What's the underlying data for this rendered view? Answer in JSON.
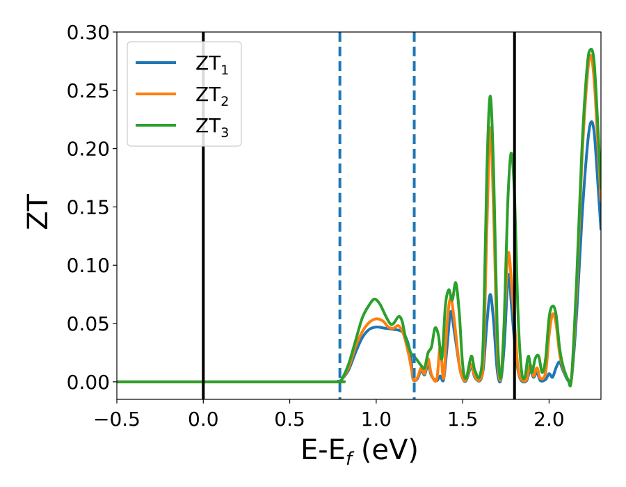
{
  "chart_data": {
    "type": "line",
    "xlabel": "E-E",
    "xlabel_sub": "f",
    "xlabel_unit": " (eV)",
    "ylabel": "ZT",
    "xlim": [
      -0.5,
      2.3
    ],
    "ylim": [
      -0.015,
      0.3
    ],
    "x_ticks": [
      -0.5,
      0.0,
      0.5,
      1.0,
      1.5,
      2.0
    ],
    "x_tick_labels": [
      "−0.5",
      "0.0",
      "0.5",
      "1.0",
      "1.5",
      "2.0"
    ],
    "y_ticks": [
      0.0,
      0.05,
      0.1,
      0.15,
      0.2,
      0.25,
      0.3
    ],
    "y_tick_labels": [
      "0.00",
      "0.05",
      "0.10",
      "0.15",
      "0.20",
      "0.25",
      "0.30"
    ],
    "grid": false,
    "legend_position": "top-left",
    "vertical_lines": [
      {
        "x": 0.0,
        "color": "#000000",
        "style": "solid"
      },
      {
        "x": 1.8,
        "color": "#000000",
        "style": "solid"
      },
      {
        "x": 0.79,
        "color": "#1f77b4",
        "style": "dashed"
      },
      {
        "x": 1.22,
        "color": "#1f77b4",
        "style": "dashed"
      }
    ],
    "series": [
      {
        "name": "ZT",
        "sub": "1",
        "color": "#1f77b4",
        "points": [
          [
            -0.5,
            0
          ],
          [
            0.7,
            0
          ],
          [
            0.78,
            0.0005
          ],
          [
            0.8,
            0.002
          ],
          [
            0.84,
            0.01
          ],
          [
            0.88,
            0.025
          ],
          [
            0.92,
            0.038
          ],
          [
            0.96,
            0.045
          ],
          [
            1.0,
            0.047
          ],
          [
            1.05,
            0.046
          ],
          [
            1.1,
            0.045
          ],
          [
            1.15,
            0.043
          ],
          [
            1.18,
            0.035
          ],
          [
            1.2,
            0.022
          ],
          [
            1.21,
            0.005
          ],
          [
            1.22,
            0.001
          ],
          [
            1.24,
            0.003
          ],
          [
            1.26,
            0.01
          ],
          [
            1.28,
            0.006
          ],
          [
            1.3,
            0.015
          ],
          [
            1.32,
            0.005
          ],
          [
            1.35,
            0.001
          ],
          [
            1.37,
            0.005
          ],
          [
            1.39,
            0.002
          ],
          [
            1.41,
            0.03
          ],
          [
            1.43,
            0.06
          ],
          [
            1.45,
            0.045
          ],
          [
            1.48,
            0.015
          ],
          [
            1.5,
            0.003
          ],
          [
            1.52,
            0.001
          ],
          [
            1.55,
            0.013
          ],
          [
            1.57,
            0.004
          ],
          [
            1.6,
            0.001
          ],
          [
            1.62,
            0.012
          ],
          [
            1.64,
            0.05
          ],
          [
            1.66,
            0.075
          ],
          [
            1.68,
            0.05
          ],
          [
            1.7,
            0.01
          ],
          [
            1.72,
            0.001
          ],
          [
            1.74,
            0.03
          ],
          [
            1.76,
            0.085
          ],
          [
            1.77,
            0.09
          ],
          [
            1.78,
            0.07
          ],
          [
            1.8,
            0.035
          ],
          [
            1.82,
            0.01
          ],
          [
            1.84,
            0.001
          ],
          [
            1.87,
            0.001
          ],
          [
            1.89,
            0.01
          ],
          [
            1.91,
            0.004
          ],
          [
            1.93,
            0.008
          ],
          [
            1.95,
            0.001
          ],
          [
            1.98,
            0.002
          ],
          [
            2.0,
            0.007
          ],
          [
            2.02,
            0.004
          ],
          [
            2.04,
            0.012
          ],
          [
            2.06,
            0.017
          ],
          [
            2.08,
            0.01
          ],
          [
            2.11,
            0.001
          ],
          [
            2.13,
            0.003
          ],
          [
            2.16,
            0.06
          ],
          [
            2.19,
            0.14
          ],
          [
            2.22,
            0.2
          ],
          [
            2.24,
            0.222
          ],
          [
            2.26,
            0.215
          ],
          [
            2.28,
            0.175
          ],
          [
            2.3,
            0.13
          ]
        ]
      },
      {
        "name": "ZT",
        "sub": "2",
        "color": "#ff7f0e",
        "points": [
          [
            -0.5,
            0
          ],
          [
            0.7,
            0
          ],
          [
            0.78,
            0.0005
          ],
          [
            0.8,
            0.002
          ],
          [
            0.84,
            0.012
          ],
          [
            0.88,
            0.03
          ],
          [
            0.92,
            0.043
          ],
          [
            0.96,
            0.051
          ],
          [
            1.0,
            0.054
          ],
          [
            1.04,
            0.052
          ],
          [
            1.07,
            0.047
          ],
          [
            1.1,
            0.046
          ],
          [
            1.13,
            0.048
          ],
          [
            1.16,
            0.04
          ],
          [
            1.19,
            0.022
          ],
          [
            1.21,
            0.006
          ],
          [
            1.22,
            0.001
          ],
          [
            1.24,
            0.004
          ],
          [
            1.26,
            0.012
          ],
          [
            1.28,
            0.007
          ],
          [
            1.3,
            0.02
          ],
          [
            1.32,
            0.006
          ],
          [
            1.35,
            0.002
          ],
          [
            1.37,
            0.03
          ],
          [
            1.39,
            0.003
          ],
          [
            1.41,
            0.05
          ],
          [
            1.43,
            0.072
          ],
          [
            1.45,
            0.055
          ],
          [
            1.48,
            0.015
          ],
          [
            1.5,
            0.003
          ],
          [
            1.52,
            0.002
          ],
          [
            1.55,
            0.015
          ],
          [
            1.57,
            0.005
          ],
          [
            1.6,
            0.002
          ],
          [
            1.62,
            0.02
          ],
          [
            1.64,
            0.13
          ],
          [
            1.66,
            0.218
          ],
          [
            1.68,
            0.14
          ],
          [
            1.7,
            0.03
          ],
          [
            1.72,
            0.002
          ],
          [
            1.74,
            0.05
          ],
          [
            1.76,
            0.105
          ],
          [
            1.77,
            0.108
          ],
          [
            1.78,
            0.09
          ],
          [
            1.8,
            0.05
          ],
          [
            1.82,
            0.012
          ],
          [
            1.84,
            0.002
          ],
          [
            1.87,
            0.002
          ],
          [
            1.89,
            0.015
          ],
          [
            1.91,
            0.005
          ],
          [
            1.93,
            0.012
          ],
          [
            1.95,
            0.003
          ],
          [
            1.98,
            0.008
          ],
          [
            2.0,
            0.04
          ],
          [
            2.02,
            0.058
          ],
          [
            2.04,
            0.05
          ],
          [
            2.06,
            0.025
          ],
          [
            2.08,
            0.012
          ],
          [
            2.11,
            0.002
          ],
          [
            2.13,
            0.003
          ],
          [
            2.16,
            0.08
          ],
          [
            2.19,
            0.19
          ],
          [
            2.22,
            0.26
          ],
          [
            2.24,
            0.28
          ],
          [
            2.26,
            0.26
          ],
          [
            2.28,
            0.21
          ],
          [
            2.3,
            0.155
          ]
        ]
      },
      {
        "name": "ZT",
        "sub": "3",
        "color": "#2ca02c",
        "points": [
          [
            -0.5,
            0
          ],
          [
            0.7,
            0
          ],
          [
            0.78,
            0.0005
          ],
          [
            0.8,
            0.002
          ],
          [
            0.84,
            0.015
          ],
          [
            0.88,
            0.035
          ],
          [
            0.92,
            0.055
          ],
          [
            0.96,
            0.066
          ],
          [
            0.99,
            0.071
          ],
          [
            1.02,
            0.067
          ],
          [
            1.05,
            0.058
          ],
          [
            1.08,
            0.05
          ],
          [
            1.1,
            0.05
          ],
          [
            1.13,
            0.056
          ],
          [
            1.15,
            0.052
          ],
          [
            1.17,
            0.038
          ],
          [
            1.2,
            0.025
          ],
          [
            1.23,
            0.02
          ],
          [
            1.26,
            0.014
          ],
          [
            1.28,
            0.012
          ],
          [
            1.3,
            0.025
          ],
          [
            1.32,
            0.03
          ],
          [
            1.34,
            0.046
          ],
          [
            1.36,
            0.04
          ],
          [
            1.38,
            0.02
          ],
          [
            1.4,
            0.065
          ],
          [
            1.42,
            0.079
          ],
          [
            1.44,
            0.07
          ],
          [
            1.46,
            0.085
          ],
          [
            1.48,
            0.06
          ],
          [
            1.5,
            0.015
          ],
          [
            1.52,
            0.003
          ],
          [
            1.55,
            0.022
          ],
          [
            1.57,
            0.01
          ],
          [
            1.6,
            0.005
          ],
          [
            1.62,
            0.04
          ],
          [
            1.64,
            0.18
          ],
          [
            1.66,
            0.245
          ],
          [
            1.68,
            0.175
          ],
          [
            1.7,
            0.045
          ],
          [
            1.72,
            0.003
          ],
          [
            1.74,
            0.05
          ],
          [
            1.76,
            0.15
          ],
          [
            1.78,
            0.196
          ],
          [
            1.8,
            0.16
          ],
          [
            1.82,
            0.06
          ],
          [
            1.84,
            0.01
          ],
          [
            1.86,
            0.004
          ],
          [
            1.88,
            0.022
          ],
          [
            1.9,
            0.008
          ],
          [
            1.92,
            0.02
          ],
          [
            1.94,
            0.022
          ],
          [
            1.96,
            0.008
          ],
          [
            1.98,
            0.02
          ],
          [
            2.0,
            0.055
          ],
          [
            2.02,
            0.065
          ],
          [
            2.04,
            0.058
          ],
          [
            2.06,
            0.03
          ],
          [
            2.08,
            0.014
          ],
          [
            2.11,
            0.002
          ],
          [
            2.13,
            0.004
          ],
          [
            2.16,
            0.09
          ],
          [
            2.19,
            0.2
          ],
          [
            2.22,
            0.27
          ],
          [
            2.24,
            0.285
          ],
          [
            2.26,
            0.275
          ],
          [
            2.28,
            0.225
          ],
          [
            2.3,
            0.165
          ]
        ]
      }
    ]
  }
}
